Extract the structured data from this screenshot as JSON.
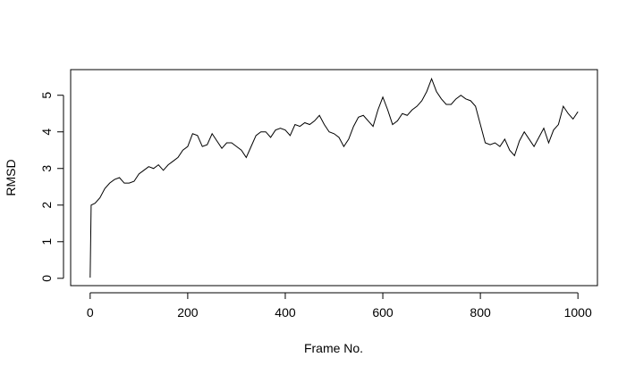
{
  "chart_data": {
    "type": "line",
    "xlabel": "Frame No.",
    "ylabel": "RMSD",
    "color": "#000000",
    "x": [
      0,
      2,
      10,
      20,
      30,
      40,
      50,
      60,
      70,
      80,
      90,
      100,
      110,
      120,
      130,
      140,
      150,
      160,
      170,
      180,
      190,
      200,
      210,
      220,
      230,
      240,
      250,
      260,
      270,
      280,
      290,
      300,
      310,
      320,
      330,
      340,
      350,
      360,
      370,
      380,
      390,
      400,
      410,
      420,
      430,
      440,
      450,
      460,
      470,
      480,
      490,
      500,
      510,
      520,
      530,
      540,
      550,
      560,
      570,
      580,
      590,
      600,
      610,
      620,
      630,
      640,
      650,
      660,
      670,
      680,
      690,
      700,
      710,
      720,
      730,
      740,
      750,
      760,
      770,
      780,
      790,
      800,
      810,
      820,
      830,
      840,
      850,
      860,
      870,
      880,
      890,
      900,
      910,
      920,
      930,
      940,
      950,
      960,
      970,
      980,
      990,
      1000
    ],
    "values": [
      0.02,
      2.0,
      2.05,
      2.2,
      2.45,
      2.6,
      2.7,
      2.75,
      2.6,
      2.6,
      2.65,
      2.85,
      2.95,
      3.05,
      3.0,
      3.1,
      2.95,
      3.1,
      3.2,
      3.3,
      3.5,
      3.6,
      3.95,
      3.9,
      3.6,
      3.65,
      3.95,
      3.75,
      3.55,
      3.7,
      3.7,
      3.6,
      3.5,
      3.3,
      3.6,
      3.9,
      4.0,
      4.0,
      3.85,
      4.05,
      4.1,
      4.05,
      3.9,
      4.2,
      4.15,
      4.25,
      4.2,
      4.3,
      4.45,
      4.2,
      4.0,
      3.95,
      3.85,
      3.6,
      3.8,
      4.15,
      4.4,
      4.45,
      4.3,
      4.15,
      4.6,
      4.95,
      4.6,
      4.2,
      4.3,
      4.5,
      4.45,
      4.6,
      4.7,
      4.85,
      5.1,
      5.45,
      5.1,
      4.9,
      4.75,
      4.75,
      4.9,
      5.0,
      4.9,
      4.85,
      4.7,
      4.2,
      3.7,
      3.65,
      3.7,
      3.6,
      3.8,
      3.5,
      3.35,
      3.75,
      4.0,
      3.8,
      3.6,
      3.85,
      4.1,
      3.7,
      4.05,
      4.2,
      4.7,
      4.5,
      4.35,
      4.55
    ],
    "xlim": [
      -40,
      1040
    ],
    "ylim": [
      -0.2,
      5.7
    ],
    "xticks": [
      0,
      200,
      400,
      600,
      800,
      1000
    ],
    "yticks": [
      0,
      1,
      2,
      3,
      4,
      5
    ]
  }
}
